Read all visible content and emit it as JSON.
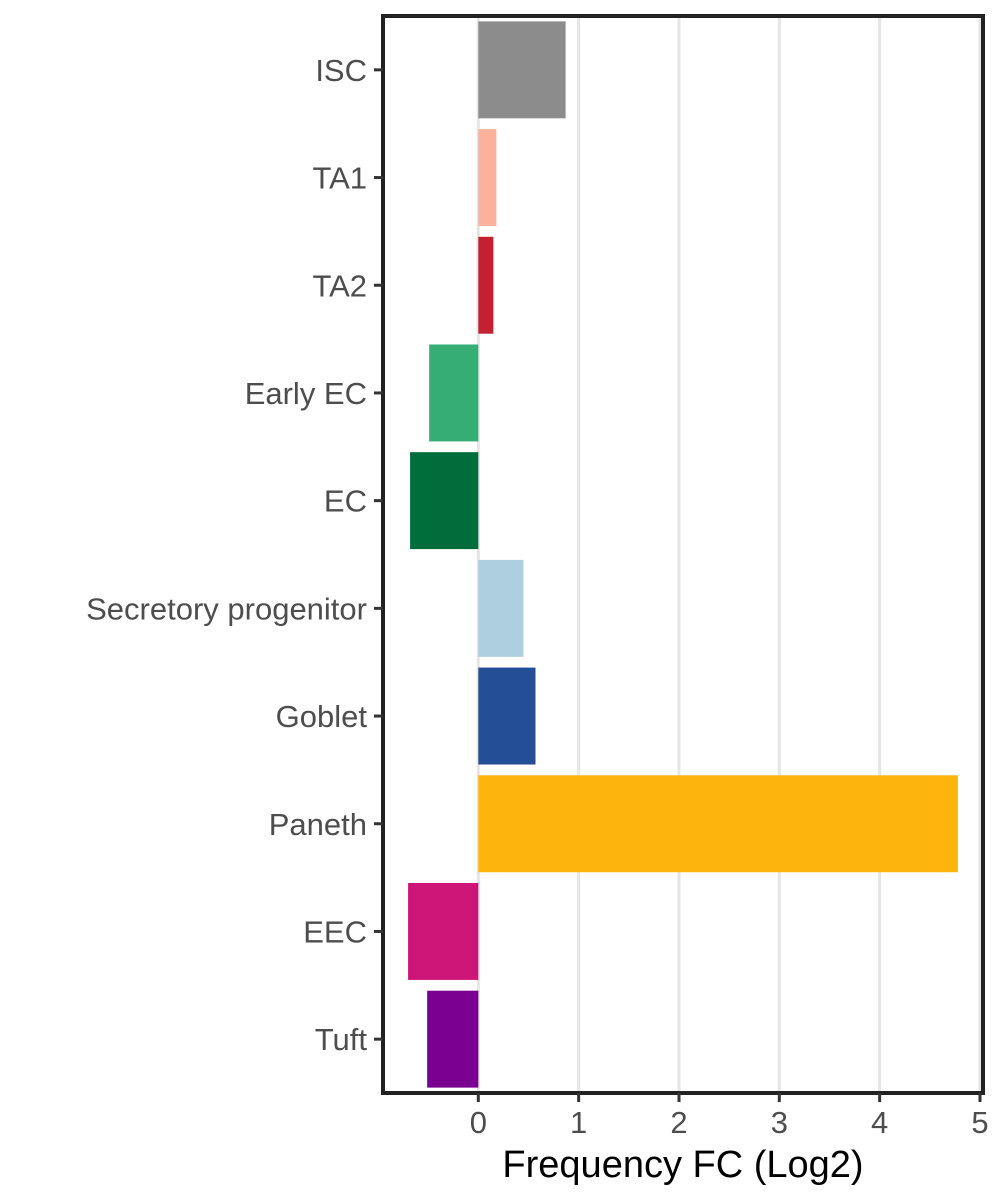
{
  "chart_data": {
    "type": "bar",
    "orientation": "horizontal",
    "categories": [
      "ISC",
      "TA1",
      "TA2",
      "Early EC",
      "EC",
      "Secretory progenitor",
      "Goblet",
      "Paneth",
      "EEC",
      "Tuft"
    ],
    "values": [
      0.87,
      0.18,
      0.15,
      -0.49,
      -0.68,
      0.45,
      0.57,
      4.78,
      -0.7,
      -0.51
    ],
    "colors": [
      "#8c8c8c",
      "#fbb19b",
      "#c32130",
      "#35ad74",
      "#016d3b",
      "#adcfdf",
      "#244e96",
      "#fdb40d",
      "#cd1578",
      "#790091"
    ],
    "xlabel": "Frequency FC (Log2)",
    "ylabel": "",
    "xlim": [
      -0.95,
      5.03
    ],
    "x_ticks": [
      "0",
      "1",
      "2",
      "3",
      "4",
      "5"
    ],
    "x_tick_values": [
      0,
      1,
      2,
      3,
      4,
      5
    ],
    "grid": "vertical major gridlines",
    "legend": "none"
  }
}
